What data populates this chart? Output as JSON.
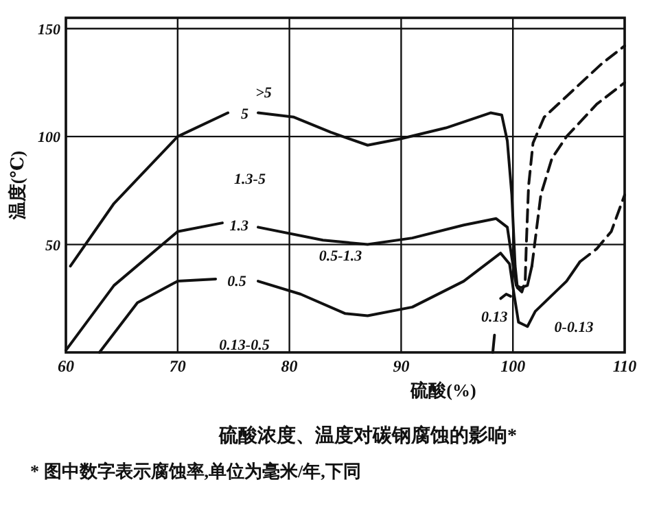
{
  "chart_data": {
    "type": "line",
    "title": "硫酸浓度、温度对碳钢腐蚀的影响*",
    "xlabel": "硫酸(%)",
    "ylabel": "温度(℃)",
    "xlim": [
      60,
      110
    ],
    "ylim": [
      0,
      155
    ],
    "xticks": [
      60,
      70,
      80,
      90,
      100,
      110
    ],
    "yticks": [
      50,
      100,
      150
    ],
    "grid": true,
    "series": [
      {
        "name": "5",
        "color": "#111111",
        "line_style": "solid",
        "x": [
          60.4,
          64.3,
          70,
          74.5,
          76,
          77.2,
          80.4,
          83.7,
          87,
          90,
          94,
          98,
          99,
          99.5,
          99.9,
          100.2,
          100.4
        ],
        "values": [
          40,
          69,
          100,
          111,
          null,
          111,
          109,
          102,
          96,
          99,
          104,
          111,
          110,
          98,
          73,
          40,
          30
        ]
      },
      {
        "color": "#111111",
        "line_style": "dashed",
        "x": [
          100.4,
          100.8,
          101.1,
          101.2,
          101.4,
          101.8,
          102.8,
          105.5,
          108,
          110
        ],
        "values": [
          30,
          28,
          33,
          50,
          77,
          97,
          109,
          122,
          134,
          142
        ]
      },
      {
        "name": "1.3",
        "color": "#111111",
        "line_style": "solid",
        "x": [
          60,
          64.3,
          70,
          74,
          75.5,
          77.2,
          83,
          87,
          91,
          95.6,
          98.5,
          99.5,
          99.9,
          100.3,
          100.7,
          101.3,
          101.7
        ],
        "values": [
          1,
          31,
          56,
          60,
          null,
          58,
          52,
          50,
          53,
          59,
          62,
          58,
          44,
          31,
          30,
          31,
          40
        ]
      },
      {
        "color": "#111111",
        "line_style": "dashed",
        "x": [
          101.7,
          102.5,
          103.5,
          104.8,
          107.5,
          110
        ],
        "values": [
          40,
          73,
          90,
          100,
          115,
          125
        ]
      },
      {
        "name": "0.5",
        "color": "#111111",
        "line_style": "solid",
        "x": [
          63,
          66.4,
          70,
          73.4,
          75.3,
          77.2,
          81,
          85,
          87,
          91,
          95.6,
          98.9,
          99.7,
          100.1,
          100.5,
          101.3,
          102,
          104.8,
          106
        ],
        "values": [
          0,
          23,
          33,
          34,
          null,
          33,
          27,
          18,
          17,
          21,
          33,
          46,
          41,
          27,
          14,
          12,
          19,
          33,
          42
        ]
      },
      {
        "color": "#111111",
        "line_style": "dashed",
        "x": [
          106,
          107.5,
          108.8,
          110
        ],
        "values": [
          42,
          48,
          56,
          73
        ]
      },
      {
        "name": "0.13",
        "color": "#111111",
        "line_style": "solid",
        "x": [
          98.2,
          98.35
        ],
        "values": [
          0,
          8
        ]
      },
      {
        "color": "#111111",
        "line_style": "solid",
        "x": [
          98.9,
          99.4,
          99.8
        ],
        "values": [
          25,
          27,
          26
        ]
      }
    ],
    "annotations": [
      ">5",
      "1.3-5",
      "0.5-1.3",
      "0.13-0.5",
      "0-0.13",
      "* 图中数字表示腐蚀率,单位为毫米/年,下同"
    ]
  }
}
